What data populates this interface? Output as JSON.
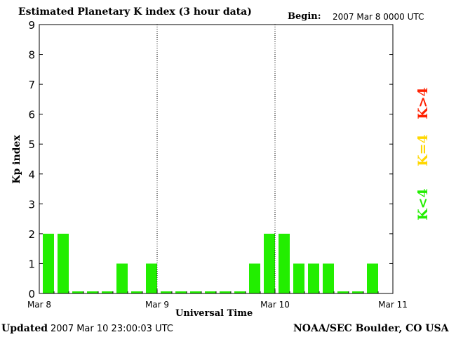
{
  "header": {
    "title": "Estimated Planetary K index (3 hour data)",
    "begin_label": "Begin:",
    "begin_value": "2007 Mar 8 0000 UTC"
  },
  "footer": {
    "updated_label": "Updated",
    "updated_value": "2007 Mar 10 23:00:03 UTC",
    "source": "NOAA/SEC Boulder, CO USA"
  },
  "legend": {
    "high": {
      "label": "K>4",
      "color": "#ff2000"
    },
    "equal": {
      "label": "K=4",
      "color": "#ffd700"
    },
    "low": {
      "label": "K<4",
      "color": "#22ee00"
    }
  },
  "chart_data": {
    "type": "bar",
    "title": "Estimated Planetary K index (3 hour data)",
    "xlabel": "Universal Time",
    "ylabel": "Kp index",
    "ylim": [
      0,
      9
    ],
    "yticks": [
      "0",
      "1",
      "2",
      "3",
      "4",
      "5",
      "6",
      "7",
      "8",
      "9"
    ],
    "xticks": [
      "Mar 8",
      "Mar 9",
      "Mar 10",
      "Mar 11"
    ],
    "bar_color": "#22ee00",
    "grid": "vertical dotted at day boundaries",
    "interval_hours": 3,
    "values": [
      2,
      2,
      0,
      0,
      0,
      1,
      0,
      1,
      0,
      0,
      0,
      0,
      0,
      0,
      1,
      2,
      2,
      1,
      1,
      1,
      0,
      0,
      1
    ]
  }
}
